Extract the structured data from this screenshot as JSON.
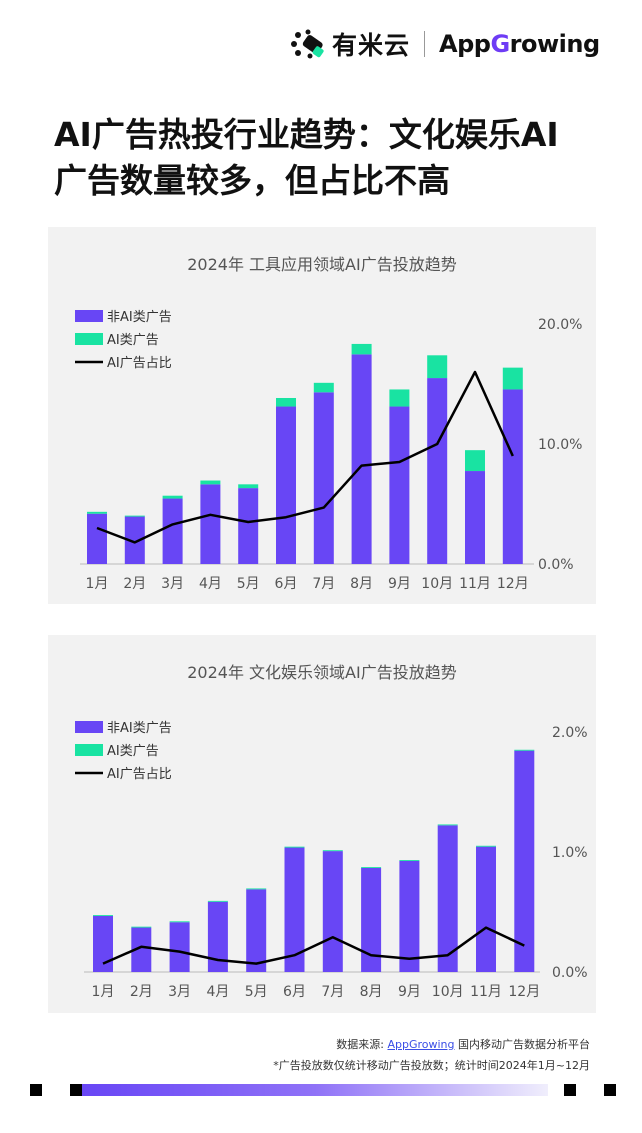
{
  "logo": {
    "cn": "有米云",
    "en_pre": "App",
    "en_g": "G",
    "en_post": "rowing"
  },
  "title_line1": "AI广告热投行业趋势：文化娱乐AI",
  "title_line2": "广告数量较多，但占比不高",
  "colors": {
    "non_ai": "#6846f5",
    "ai": "#19e3a2",
    "ratio": "#000000",
    "panel_bg": "#f2f2f2"
  },
  "chart_data": [
    {
      "type": "bar",
      "title": "2024年  工具应用领域AI广告投放趋势",
      "categories": [
        "1月",
        "2月",
        "3月",
        "4月",
        "5月",
        "6月",
        "7月",
        "8月",
        "9月",
        "10月",
        "11月",
        "12月"
      ],
      "series": [
        {
          "name": "非AI类广告",
          "kind": "stacked-bar",
          "values": [
            53,
            50,
            69,
            84,
            80,
            166,
            181,
            221,
            166,
            196,
            98,
            184
          ]
        },
        {
          "name": "AI类广告",
          "kind": "stacked-bar",
          "values": [
            2,
            1,
            3,
            4,
            4,
            9,
            10,
            11,
            18,
            24,
            22,
            23
          ]
        },
        {
          "name": "AI广告占比",
          "kind": "line",
          "axis": "right",
          "values": [
            3.0,
            1.8,
            3.3,
            4.1,
            3.5,
            3.9,
            4.7,
            8.2,
            8.5,
            10.0,
            16.0,
            9.0
          ]
        }
      ],
      "ylim": [
        0,
        253
      ],
      "y2lim": [
        0,
        20
      ],
      "y2ticks": [
        "0.0%",
        "10.0%",
        "20.0%"
      ],
      "legend_position": "top-left"
    },
    {
      "type": "bar",
      "title": "2024年  文化娱乐领域AI广告投放趋势",
      "categories": [
        "1月",
        "2月",
        "3月",
        "4月",
        "5月",
        "6月",
        "7月",
        "8月",
        "9月",
        "10月",
        "11月",
        "12月"
      ],
      "series": [
        {
          "name": "非AI类广告",
          "kind": "stacked-bar",
          "values": [
            63,
            50,
            56,
            79,
            93,
            140,
            136,
            117,
            125,
            165,
            141,
            249
          ]
        },
        {
          "name": "AI类广告",
          "kind": "stacked-bar",
          "values": [
            1,
            1,
            1,
            1,
            1,
            1,
            1,
            1,
            1,
            1,
            1,
            1
          ]
        },
        {
          "name": "AI广告占比",
          "kind": "line",
          "axis": "right",
          "values": [
            0.07,
            0.21,
            0.17,
            0.1,
            0.07,
            0.14,
            0.29,
            0.14,
            0.11,
            0.14,
            0.37,
            0.22
          ]
        }
      ],
      "ylim": [
        0,
        270
      ],
      "y2lim": [
        0,
        2
      ],
      "y2ticks": [
        "0.0%",
        "1.0%",
        "2.0%"
      ],
      "legend_position": "top-left"
    }
  ],
  "footer": {
    "source_prefix": "数据来源: ",
    "source_link": "AppGrowing",
    "source_suffix": " 国内移动广告数据分析平台",
    "note": "*广告投放数仅统计移动广告投放数；统计时间2024年1月~12月"
  }
}
